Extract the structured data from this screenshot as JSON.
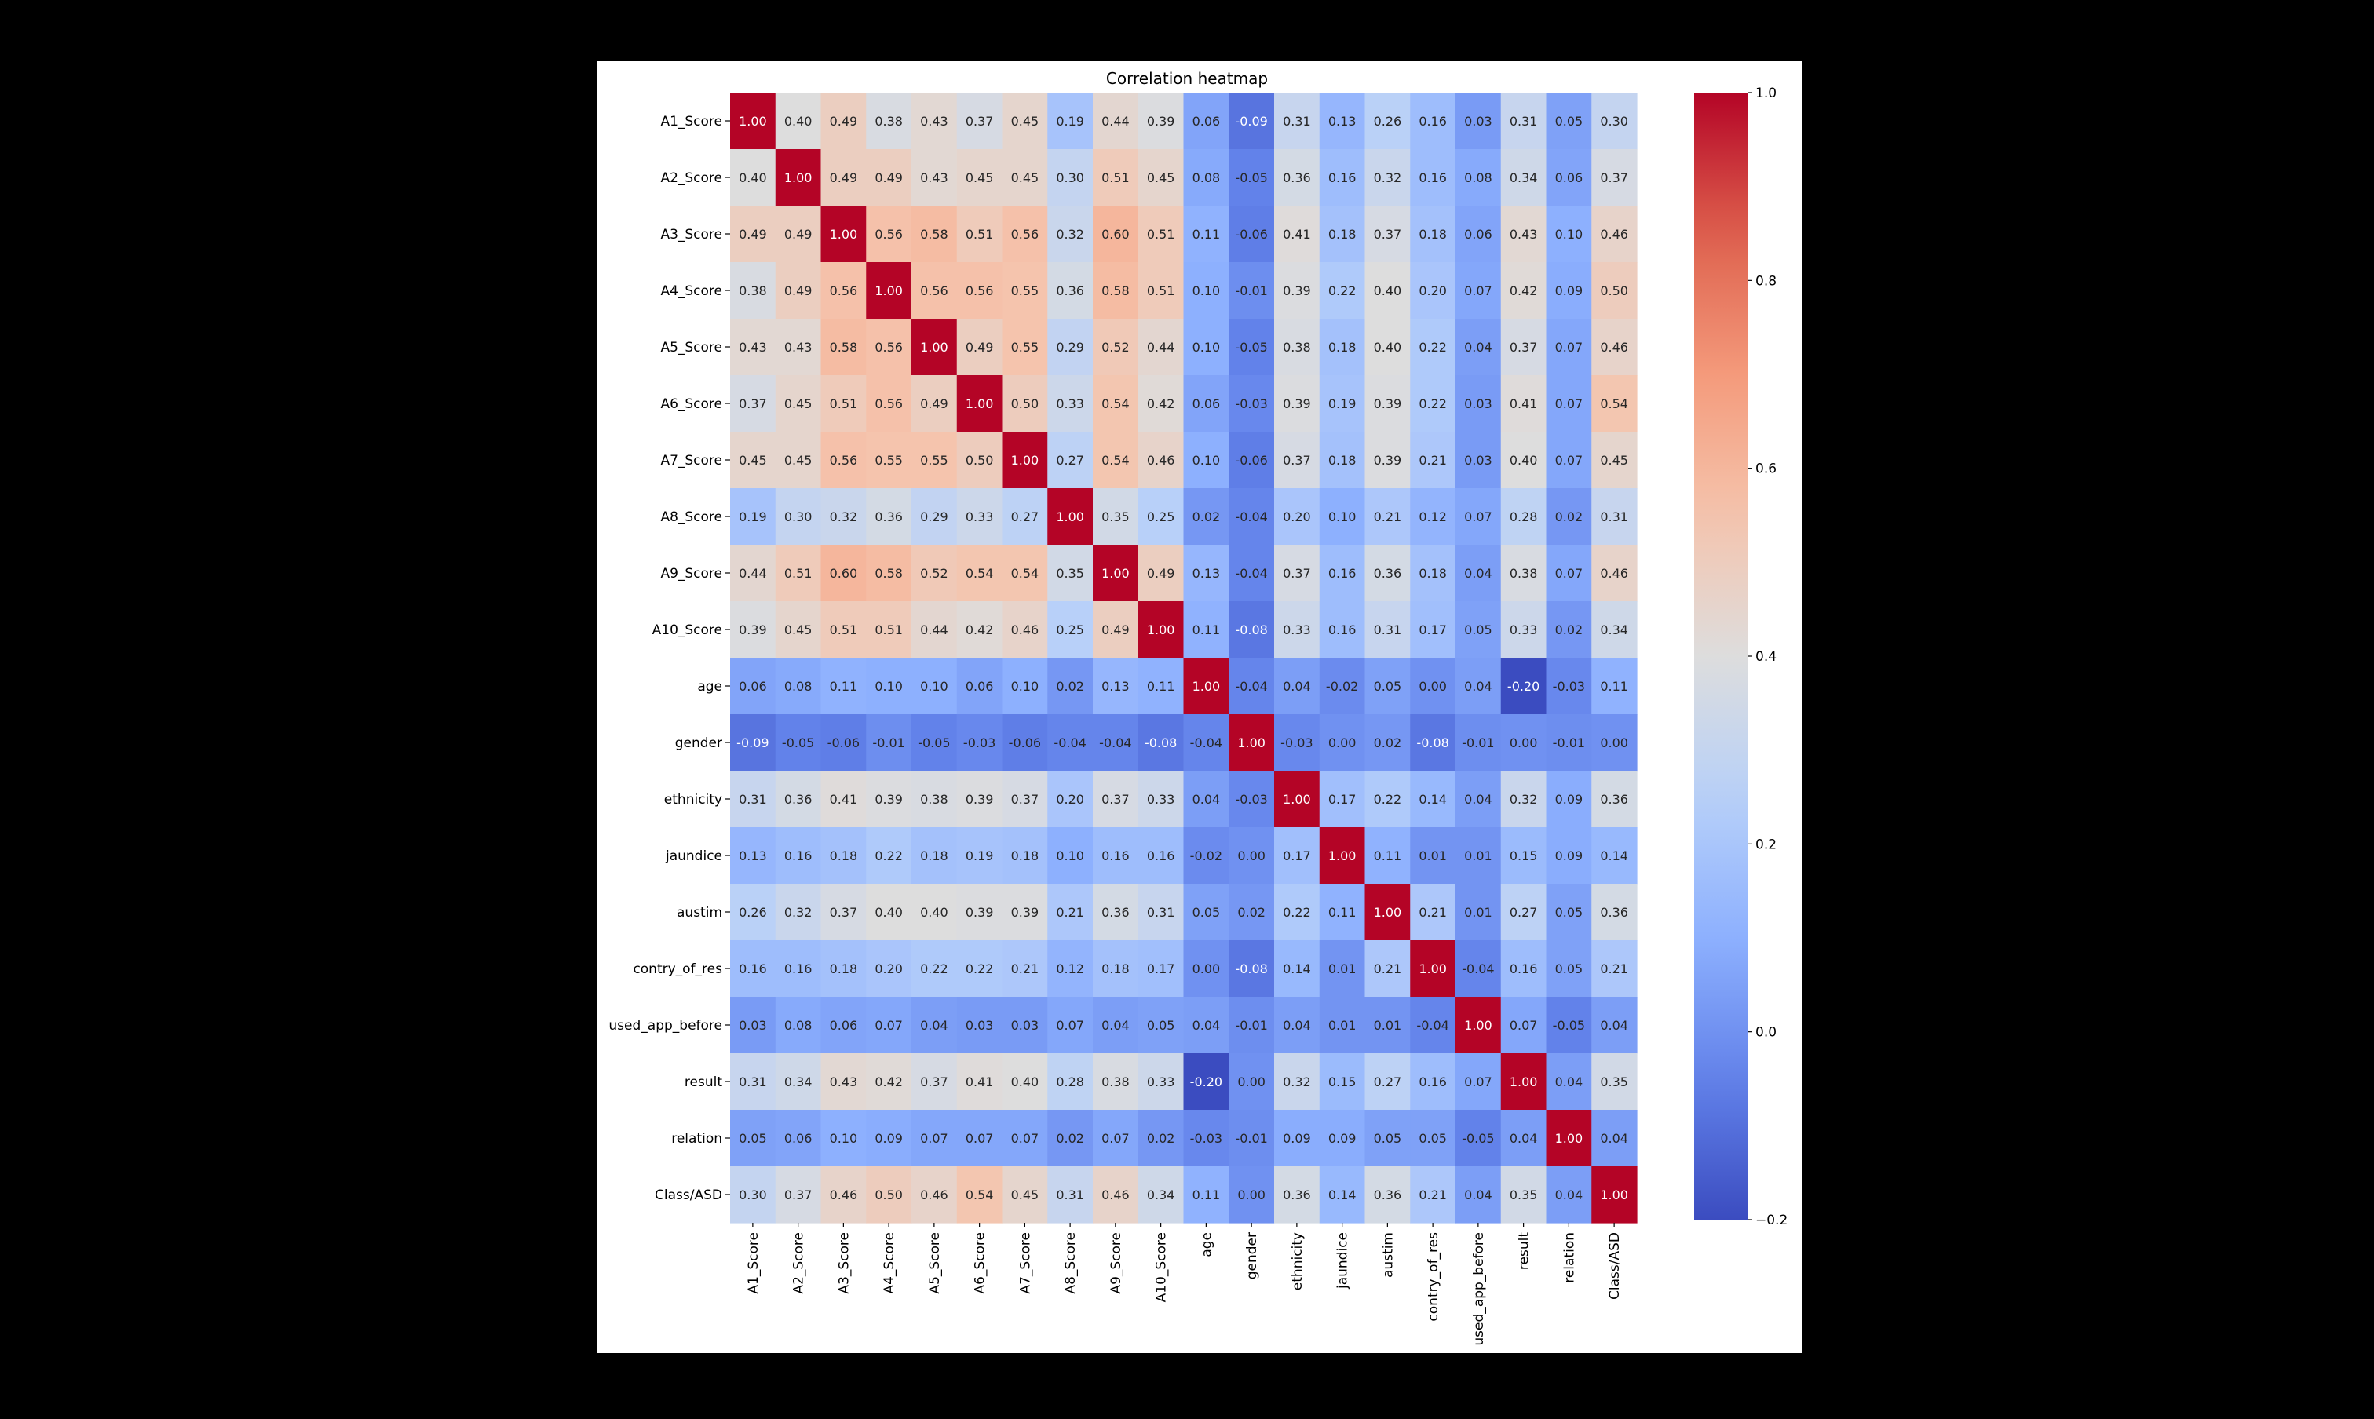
{
  "chart_data": {
    "type": "heatmap",
    "title": "Correlation heatmap",
    "colormap": "coolwarm",
    "vmin": -0.2,
    "vmax": 1.0,
    "colorbar_ticks": [
      "1.0",
      "0.8",
      "0.6",
      "0.4",
      "0.2",
      "0.0",
      "−0.2"
    ],
    "colorbar_tick_values": [
      1.0,
      0.8,
      0.6,
      0.4,
      0.2,
      0.0,
      -0.2
    ],
    "y_labels": [
      "A1_Score",
      "A2_Score",
      "A3_Score",
      "A4_Score",
      "A5_Score",
      "A6_Score",
      "A7_Score",
      "A8_Score",
      "A9_Score",
      "A10_Score",
      "age",
      "gender",
      "ethnicity",
      "jaundice",
      "austim",
      "contry_of_res",
      "used_app_before",
      "result",
      "relation",
      "Class/ASD"
    ],
    "x_labels": [
      "A1_Score",
      "A2_Score",
      "A3_Score",
      "A4_Score",
      "A5_Score",
      "A6_Score",
      "A7_Score",
      "A8_Score",
      "A9_Score",
      "A10_Score",
      "age",
      "gender",
      "ethnicity",
      "jaundice",
      "austim",
      "contry_of_res",
      "used_app_before",
      "result",
      "relation",
      "Class/ASD"
    ],
    "values": [
      [
        1.0,
        0.4,
        0.49,
        0.38,
        0.43,
        0.37,
        0.45,
        0.19,
        0.44,
        0.39,
        0.06,
        -0.09,
        0.31,
        0.13,
        0.26,
        0.16,
        0.03,
        0.31,
        0.05,
        0.3
      ],
      [
        0.4,
        1.0,
        0.49,
        0.49,
        0.43,
        0.45,
        0.45,
        0.3,
        0.51,
        0.45,
        0.08,
        -0.05,
        0.36,
        0.16,
        0.32,
        0.16,
        0.08,
        0.34,
        0.06,
        0.37
      ],
      [
        0.49,
        0.49,
        1.0,
        0.56,
        0.58,
        0.51,
        0.56,
        0.32,
        0.6,
        0.51,
        0.11,
        -0.06,
        0.41,
        0.18,
        0.37,
        0.18,
        0.06,
        0.43,
        0.1,
        0.46
      ],
      [
        0.38,
        0.49,
        0.56,
        1.0,
        0.56,
        0.56,
        0.55,
        0.36,
        0.58,
        0.51,
        0.1,
        -0.01,
        0.39,
        0.22,
        0.4,
        0.2,
        0.07,
        0.42,
        0.09,
        0.5
      ],
      [
        0.43,
        0.43,
        0.58,
        0.56,
        1.0,
        0.49,
        0.55,
        0.29,
        0.52,
        0.44,
        0.1,
        -0.05,
        0.38,
        0.18,
        0.4,
        0.22,
        0.04,
        0.37,
        0.07,
        0.46
      ],
      [
        0.37,
        0.45,
        0.51,
        0.56,
        0.49,
        1.0,
        0.5,
        0.33,
        0.54,
        0.42,
        0.06,
        -0.03,
        0.39,
        0.19,
        0.39,
        0.22,
        0.03,
        0.41,
        0.07,
        0.54
      ],
      [
        0.45,
        0.45,
        0.56,
        0.55,
        0.55,
        0.5,
        1.0,
        0.27,
        0.54,
        0.46,
        0.1,
        -0.06,
        0.37,
        0.18,
        0.39,
        0.21,
        0.03,
        0.4,
        0.07,
        0.45
      ],
      [
        0.19,
        0.3,
        0.32,
        0.36,
        0.29,
        0.33,
        0.27,
        1.0,
        0.35,
        0.25,
        0.02,
        -0.04,
        0.2,
        0.1,
        0.21,
        0.12,
        0.07,
        0.28,
        0.02,
        0.31
      ],
      [
        0.44,
        0.51,
        0.6,
        0.58,
        0.52,
        0.54,
        0.54,
        0.35,
        1.0,
        0.49,
        0.13,
        -0.04,
        0.37,
        0.16,
        0.36,
        0.18,
        0.04,
        0.38,
        0.07,
        0.46
      ],
      [
        0.39,
        0.45,
        0.51,
        0.51,
        0.44,
        0.42,
        0.46,
        0.25,
        0.49,
        1.0,
        0.11,
        -0.08,
        0.33,
        0.16,
        0.31,
        0.17,
        0.05,
        0.33,
        0.02,
        0.34
      ],
      [
        0.06,
        0.08,
        0.11,
        0.1,
        0.1,
        0.06,
        0.1,
        0.02,
        0.13,
        0.11,
        1.0,
        -0.04,
        0.04,
        -0.02,
        0.05,
        -0.0,
        0.04,
        -0.2,
        -0.03,
        0.11
      ],
      [
        -0.09,
        -0.05,
        -0.06,
        -0.01,
        -0.05,
        -0.03,
        -0.06,
        -0.04,
        -0.04,
        -0.08,
        -0.04,
        1.0,
        -0.03,
        -0.0,
        0.02,
        -0.08,
        -0.01,
        0.0,
        -0.01,
        -0.0
      ],
      [
        0.31,
        0.36,
        0.41,
        0.39,
        0.38,
        0.39,
        0.37,
        0.2,
        0.37,
        0.33,
        0.04,
        -0.03,
        1.0,
        0.17,
        0.22,
        0.14,
        0.04,
        0.32,
        0.09,
        0.36
      ],
      [
        0.13,
        0.16,
        0.18,
        0.22,
        0.18,
        0.19,
        0.18,
        0.1,
        0.16,
        0.16,
        -0.02,
        -0.0,
        0.17,
        1.0,
        0.11,
        0.01,
        0.01,
        0.15,
        0.09,
        0.14
      ],
      [
        0.26,
        0.32,
        0.37,
        0.4,
        0.4,
        0.39,
        0.39,
        0.21,
        0.36,
        0.31,
        0.05,
        0.02,
        0.22,
        0.11,
        1.0,
        0.21,
        0.01,
        0.27,
        0.05,
        0.36
      ],
      [
        0.16,
        0.16,
        0.18,
        0.2,
        0.22,
        0.22,
        0.21,
        0.12,
        0.18,
        0.17,
        -0.0,
        -0.08,
        0.14,
        0.01,
        0.21,
        1.0,
        -0.04,
        0.16,
        0.05,
        0.21
      ],
      [
        0.03,
        0.08,
        0.06,
        0.07,
        0.04,
        0.03,
        0.03,
        0.07,
        0.04,
        0.05,
        0.04,
        -0.01,
        0.04,
        0.01,
        0.01,
        -0.04,
        1.0,
        0.07,
        -0.05,
        0.04
      ],
      [
        0.31,
        0.34,
        0.43,
        0.42,
        0.37,
        0.41,
        0.4,
        0.28,
        0.38,
        0.33,
        -0.2,
        0.0,
        0.32,
        0.15,
        0.27,
        0.16,
        0.07,
        1.0,
        0.04,
        0.35
      ],
      [
        0.05,
        0.06,
        0.1,
        0.09,
        0.07,
        0.07,
        0.07,
        0.02,
        0.07,
        0.02,
        -0.03,
        -0.01,
        0.09,
        0.09,
        0.05,
        0.05,
        -0.05,
        0.04,
        1.0,
        0.04
      ],
      [
        0.3,
        0.37,
        0.46,
        0.5,
        0.46,
        0.54,
        0.45,
        0.31,
        0.46,
        0.34,
        0.11,
        -0.0,
        0.36,
        0.14,
        0.36,
        0.21,
        0.04,
        0.35,
        0.04,
        1.0
      ]
    ],
    "annotation_format": "2 decimals",
    "grid": false
  }
}
